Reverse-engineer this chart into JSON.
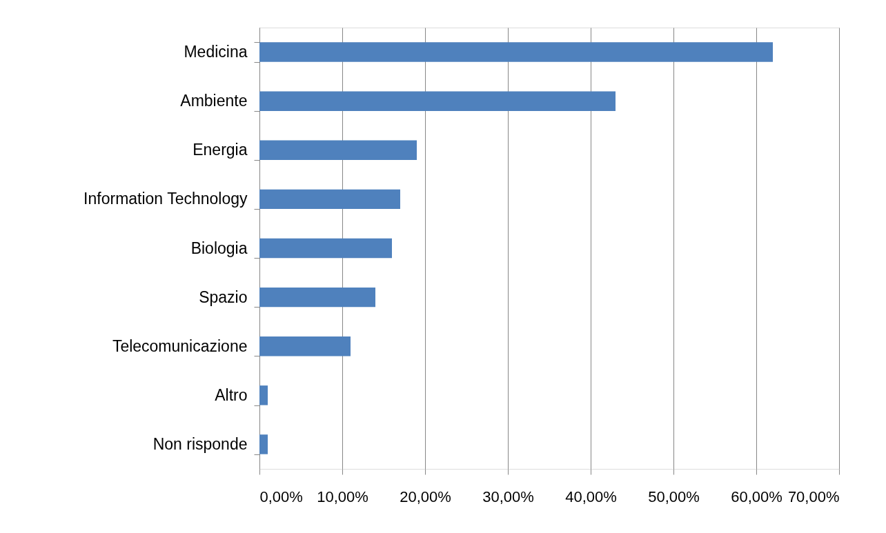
{
  "chart_data": {
    "type": "bar",
    "orientation": "horizontal",
    "categories": [
      "Medicina",
      "Ambiente",
      "Energia",
      "Information Technology",
      "Biologia",
      "Spazio",
      "Telecomunicazione",
      "Altro",
      "Non risponde"
    ],
    "values": [
      62,
      43,
      19,
      17,
      16,
      14,
      11,
      1,
      1
    ],
    "color": "#4f81bd",
    "xlim": [
      0,
      70
    ],
    "xticks": [
      {
        "value": 0,
        "label": "0,00%"
      },
      {
        "value": 10,
        "label": "10,00%"
      },
      {
        "value": 20,
        "label": "20,00%"
      },
      {
        "value": 30,
        "label": "30,00%"
      },
      {
        "value": 40,
        "label": "40,00%"
      },
      {
        "value": 50,
        "label": "50,00%"
      },
      {
        "value": 60,
        "label": "60,00%"
      },
      {
        "value": 70,
        "label": "70,00%"
      }
    ],
    "grid": "x"
  }
}
